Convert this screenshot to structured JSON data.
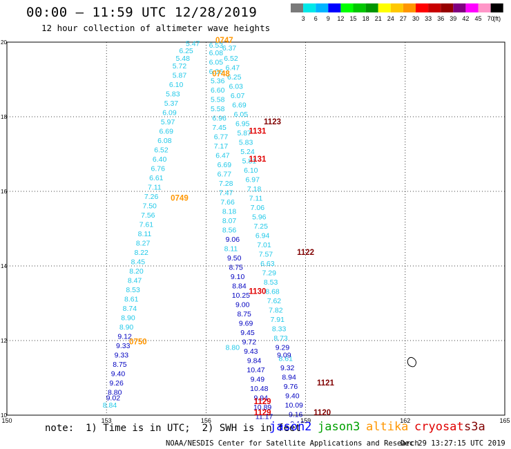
{
  "title": "00:00 — 11:59 UTC 12/28/2019",
  "subtitle": "12 hour collection of altimeter wave heights",
  "colorbar": {
    "colors": [
      "#7a7a7a",
      "#00e8e8",
      "#00b4ff",
      "#0000ff",
      "#00ff00",
      "#00c800",
      "#009600",
      "#ffff00",
      "#ffc800",
      "#ff9600",
      "#ff0000",
      "#c80000",
      "#960000",
      "#800080",
      "#ff00ff",
      "#ff96c8",
      "#000000"
    ],
    "labels": [
      "3",
      "6",
      "9",
      "12",
      "15",
      "18",
      "21",
      "24",
      "27",
      "30",
      "33",
      "36",
      "39",
      "42",
      "45",
      "70",
      "(ft)"
    ]
  },
  "map": {
    "lon_range": [
      150,
      165
    ],
    "lat_range": [
      10,
      20
    ],
    "x_ticks": [
      "150",
      "153",
      "156",
      "159",
      "162",
      "165"
    ],
    "y_ticks": [
      "10",
      "12",
      "14",
      "16",
      "18",
      "20"
    ],
    "grid": true,
    "island": {
      "lon": 162.2,
      "lat": 11.4
    }
  },
  "colors": {
    "cyan": "#20c8e8",
    "blue": "#0000c0",
    "orange": "#ff9600",
    "darkred": "#800000",
    "red": "#e00000",
    "green": "#00a000"
  },
  "tracks": [
    {
      "color": "cyan",
      "points": [
        [
          "5.47",
          155.6,
          19.9
        ],
        [
          "6.25",
          155.4,
          19.7
        ],
        [
          "5.48",
          155.3,
          19.5
        ],
        [
          "5.72",
          155.2,
          19.3
        ],
        [
          "5.87",
          155.2,
          19.05
        ],
        [
          "6.10",
          155.1,
          18.8
        ],
        [
          "5.83",
          155.0,
          18.55
        ],
        [
          "5.37",
          154.95,
          18.3
        ],
        [
          "6.09",
          154.9,
          18.05
        ],
        [
          "5.97",
          154.85,
          17.8
        ],
        [
          "6.69",
          154.8,
          17.55
        ],
        [
          "6.08",
          154.75,
          17.3
        ],
        [
          "6.52",
          154.65,
          17.05
        ],
        [
          "6.40",
          154.6,
          16.8
        ],
        [
          "6.76",
          154.55,
          16.55
        ],
        [
          "6.61",
          154.5,
          16.3
        ],
        [
          "7.11",
          154.45,
          16.05
        ],
        [
          "7.26",
          154.35,
          15.8
        ],
        [
          "7.50",
          154.3,
          15.55
        ],
        [
          "7.56",
          154.25,
          15.3
        ],
        [
          "7.61",
          154.2,
          15.05
        ],
        [
          "8.11",
          154.15,
          14.8
        ],
        [
          "8.27",
          154.1,
          14.55
        ],
        [
          "8.22",
          154.05,
          14.3
        ],
        [
          "8.45",
          153.95,
          14.05
        ],
        [
          "8.20",
          153.9,
          13.8
        ],
        [
          "8.47",
          153.85,
          13.55
        ],
        [
          "8.53",
          153.8,
          13.3
        ],
        [
          "8.61",
          153.75,
          13.05
        ],
        [
          "8.74",
          153.7,
          12.8
        ],
        [
          "8.90",
          153.65,
          12.55
        ],
        [
          "8.90",
          153.6,
          12.3
        ],
        [
          "8.84",
          153.1,
          10.2
        ],
        [
          "6.53",
          156.3,
          19.85
        ],
        [
          "6.08",
          156.3,
          19.65
        ],
        [
          "6.05",
          156.3,
          19.4
        ],
        [
          "6.06",
          156.3,
          19.15
        ],
        [
          "5.36",
          156.35,
          18.9
        ],
        [
          "6.60",
          156.35,
          18.65
        ],
        [
          "5.58",
          156.35,
          18.4
        ],
        [
          "5.58",
          156.35,
          18.15
        ],
        [
          "6.96",
          156.4,
          17.9
        ],
        [
          "7.45",
          156.4,
          17.65
        ],
        [
          "6.77",
          156.45,
          17.4
        ],
        [
          "7.17",
          156.45,
          17.15
        ],
        [
          "6.47",
          156.5,
          16.9
        ],
        [
          "6.69",
          156.55,
          16.65
        ],
        [
          "6.77",
          156.55,
          16.4
        ],
        [
          "7.28",
          156.6,
          16.15
        ],
        [
          "7.47",
          156.6,
          15.9
        ],
        [
          "7.66",
          156.65,
          15.65
        ],
        [
          "8.18",
          156.7,
          15.4
        ],
        [
          "8.07",
          156.7,
          15.15
        ],
        [
          "8.56",
          156.7,
          14.9
        ],
        [
          "8.11",
          156.75,
          14.4
        ],
        [
          "6.37",
          156.7,
          19.78
        ],
        [
          "6.52",
          156.75,
          19.5
        ],
        [
          "6.47",
          156.8,
          19.25
        ],
        [
          "6.25",
          156.85,
          19.0
        ],
        [
          "6.03",
          156.9,
          18.75
        ],
        [
          "6.07",
          156.95,
          18.5
        ],
        [
          "6.69",
          157.0,
          18.25
        ],
        [
          "6.05",
          157.05,
          18.0
        ],
        [
          "6.95",
          157.1,
          17.75
        ],
        [
          "5.87",
          157.15,
          17.5
        ],
        [
          "5.83",
          157.2,
          17.25
        ],
        [
          "5.24",
          157.25,
          17.0
        ],
        [
          "5.81",
          157.3,
          16.75
        ],
        [
          "6.10",
          157.35,
          16.5
        ],
        [
          "6.97",
          157.4,
          16.25
        ],
        [
          "7.18",
          157.45,
          16.0
        ],
        [
          "7.11",
          157.5,
          15.75
        ],
        [
          "7.06",
          157.55,
          15.5
        ],
        [
          "5.96",
          157.6,
          15.25
        ],
        [
          "7.25",
          157.65,
          15.0
        ],
        [
          "6.94",
          157.7,
          14.75
        ],
        [
          "7.01",
          157.75,
          14.5
        ],
        [
          "7.57",
          157.8,
          14.25
        ],
        [
          "6.63",
          157.85,
          14.0
        ],
        [
          "7.29",
          157.9,
          13.75
        ],
        [
          "8.53",
          157.95,
          13.5
        ],
        [
          "8.68",
          158.0,
          13.25
        ],
        [
          "7.62",
          158.05,
          13.0
        ],
        [
          "7.82",
          158.1,
          12.75
        ],
        [
          "7.91",
          158.15,
          12.5
        ],
        [
          "8.33",
          158.2,
          12.25
        ],
        [
          "8.73",
          158.25,
          12.0
        ],
        [
          "8.80",
          156.8,
          11.75
        ],
        [
          "8.61",
          158.4,
          11.45
        ]
      ]
    },
    {
      "color": "blue",
      "points": [
        [
          "9.12",
          153.55,
          12.05
        ],
        [
          "9.33",
          153.5,
          11.8
        ],
        [
          "9.33",
          153.45,
          11.55
        ],
        [
          "8.75",
          153.4,
          11.3
        ],
        [
          "9.40",
          153.35,
          11.05
        ],
        [
          "9.26",
          153.3,
          10.8
        ],
        [
          "8.80",
          153.25,
          10.55
        ],
        [
          "9.02",
          153.2,
          10.4
        ],
        [
          "9.06",
          156.8,
          14.65
        ],
        [
          "9.50",
          156.85,
          14.15
        ],
        [
          "8.75",
          156.9,
          13.9
        ],
        [
          "9.10",
          156.95,
          13.65
        ],
        [
          "8.84",
          157.0,
          13.4
        ],
        [
          "10.25",
          157.05,
          13.15
        ],
        [
          "9.00",
          157.1,
          12.9
        ],
        [
          "8.75",
          157.15,
          12.65
        ],
        [
          "9.69",
          157.2,
          12.4
        ],
        [
          "9.45",
          157.25,
          12.15
        ],
        [
          "9.72",
          157.3,
          11.9
        ],
        [
          "9.43",
          157.35,
          11.65
        ],
        [
          "9.84",
          157.45,
          11.4
        ],
        [
          "10.47",
          157.5,
          11.15
        ],
        [
          "9.49",
          157.55,
          10.9
        ],
        [
          "10.48",
          157.6,
          10.65
        ],
        [
          "9.94",
          157.65,
          10.4
        ],
        [
          "10.89",
          157.7,
          10.15
        ],
        [
          "11.17",
          157.75,
          9.9
        ],
        [
          "10.32",
          157.8,
          9.65
        ],
        [
          "9.29",
          158.3,
          11.75
        ],
        [
          "9.09",
          158.35,
          11.55
        ],
        [
          "9.32",
          158.45,
          11.2
        ],
        [
          "8.94",
          158.5,
          10.95
        ],
        [
          "9.76",
          158.55,
          10.7
        ],
        [
          "9.40",
          158.6,
          10.45
        ],
        [
          "10.09",
          158.65,
          10.2
        ],
        [
          "9.16",
          158.7,
          9.95
        ],
        [
          "9.12",
          158.75,
          9.7
        ]
      ]
    },
    {
      "color": "orange",
      "points": [
        [
          "0747",
          156.55,
          19.98
        ],
        [
          "0748",
          156.45,
          19.08
        ],
        [
          "0749",
          155.2,
          15.75
        ],
        [
          "0750",
          153.95,
          11.9
        ]
      ]
    },
    {
      "color": "darkred",
      "points": [
        [
          "1123",
          158.0,
          17.8
        ],
        [
          "1122",
          159.0,
          14.3
        ],
        [
          "1121",
          159.6,
          10.8
        ],
        [
          "1120",
          159.5,
          10.0
        ]
      ]
    },
    {
      "color": "red",
      "points": [
        [
          "1131",
          157.55,
          17.55
        ],
        [
          "1131",
          157.55,
          16.8
        ],
        [
          "1130",
          157.55,
          13.25
        ],
        [
          "1129",
          157.7,
          10.3
        ],
        [
          "1129",
          157.7,
          10.0
        ]
      ]
    }
  ],
  "note": "note:  1) Time is in UTC;  2) SWH is in feet",
  "legend": [
    {
      "label": "jason2",
      "color": "#0000ff"
    },
    {
      "label": "jason3",
      "color": "#00a000"
    },
    {
      "label": "altika",
      "color": "#ff9600"
    },
    {
      "label": "cryosat",
      "color": "#e00000"
    },
    {
      "label": "s3a",
      "color": "#800000"
    }
  ],
  "credit": "NOAA/NESDIS Center for Satellite Applications and Research",
  "timestamp": "Dec 29 13:27:15 UTC 2019"
}
